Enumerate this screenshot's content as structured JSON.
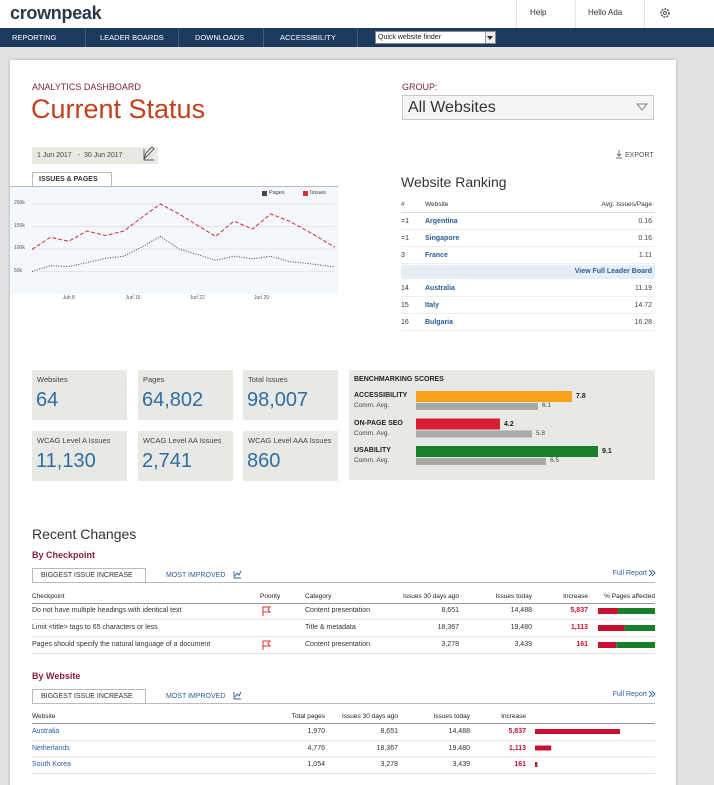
{
  "header": {
    "logo": "crownpeak",
    "links": [
      "Help",
      "Hello Ada"
    ]
  },
  "nav": {
    "items": [
      "REPORTING",
      "LEADER BOARDS",
      "DOWNLOADS",
      "ACCESSIBILITY"
    ],
    "finder": "Quick website finder"
  },
  "dashboard": {
    "eyebrow": "ANALYTICS DASHBOARD",
    "title": "Current Status",
    "group_label": "GROUP:",
    "group": "All Websites",
    "date_from": "1 Jun 2017",
    "date_sep": "-",
    "date_to": "30 Jun 2017",
    "export": "EXPORT"
  },
  "chart_data": [
    {
      "type": "line",
      "title": "ISSUES & PAGES",
      "x": [
        4,
        6,
        8,
        10,
        12,
        14,
        16,
        18,
        20,
        22,
        24,
        26,
        28,
        30,
        32,
        34,
        37
      ],
      "xlim": [
        4,
        37
      ],
      "xticks": [
        {
          "value": 8,
          "label": "Jun 8"
        },
        {
          "value": 15,
          "label": "Jun 15"
        },
        {
          "value": 22,
          "label": "Jun 22"
        },
        {
          "value": 29,
          "label": "Jun 29"
        }
      ],
      "ylim": [
        0,
        240000
      ],
      "yticks": [
        {
          "value": 50000,
          "label": "50k"
        },
        {
          "value": 100000,
          "label": "100k"
        },
        {
          "value": 150000,
          "label": "150k"
        },
        {
          "value": 200000,
          "label": "200k"
        }
      ],
      "grid": true,
      "series": [
        {
          "name": "Pages",
          "color": "#444444",
          "line_style": "dotted",
          "values": [
            50000,
            63000,
            61000,
            70000,
            79000,
            84000,
            105000,
            128000,
            100000,
            88000,
            75000,
            84000,
            78000,
            84000,
            72000,
            68000,
            60000
          ]
        },
        {
          "name": "Issues",
          "color": "#d9302c",
          "line_style": "dashed",
          "values": [
            99000,
            126000,
            117000,
            140000,
            130000,
            140000,
            171000,
            200000,
            178000,
            153000,
            128000,
            162000,
            144000,
            178000,
            162000,
            140000,
            104000
          ]
        }
      ]
    },
    {
      "type": "bar",
      "orientation": "horizontal",
      "title": "BENCHMARKING SCORES",
      "categories": [
        "ACCESSIBILITY",
        "ON-PAGE SEO",
        "USABILITY"
      ],
      "xlim": [
        0,
        10
      ],
      "series": [
        {
          "colors": [
            "#f7a21b",
            "#d71f30",
            "#16802b"
          ],
          "values": [
            7.8,
            4.2,
            9.1
          ]
        },
        {
          "name": "Comm. Avg.",
          "color": "#a9a9a9",
          "values": [
            6.1,
            5.8,
            6.5
          ]
        }
      ]
    }
  ],
  "ranking": {
    "title": "Website Ranking",
    "columns": [
      "#",
      "Website",
      "Avg. Issues/Page"
    ],
    "top": [
      [
        "=1",
        "Argentina",
        "0.16"
      ],
      [
        "=1",
        "Singapore",
        "0.16"
      ],
      [
        "3",
        "France",
        "1.11"
      ]
    ],
    "link": "View Full Leader Board",
    "bottom": [
      [
        "14",
        "Australia",
        "11.19"
      ],
      [
        "15",
        "Italy",
        "14.72"
      ],
      [
        "16",
        "Bulgaria",
        "16.28"
      ]
    ]
  },
  "stats": [
    {
      "label": "Websites",
      "value": "64"
    },
    {
      "label": "Pages",
      "value": "64,802"
    },
    {
      "label": "Total Issues",
      "value": "98,007"
    },
    {
      "label": "WCAG Level A Issues",
      "value": "11,130"
    },
    {
      "label": "WCAG Level AA Issues",
      "value": "2,741"
    },
    {
      "label": "WCAG Level AAA Issues",
      "value": "860"
    }
  ],
  "recent": {
    "title": "Recent Changes",
    "by_checkpoint": {
      "heading": "By Checkpoint",
      "tabs": [
        "BIGGEST ISSUE INCREASE",
        "MOST IMPROVED"
      ],
      "full_report": "Full Report",
      "columns": [
        "Checkpoint",
        "Priority",
        "Category",
        "Issues 30 days ago",
        "Issues today",
        "Increase",
        "% Pages affected"
      ],
      "rows": [
        {
          "checkpoint": "Do not have multiple headings with identical text",
          "priority_flag": true,
          "category": "Content presentation",
          "ago": "8,651",
          "today": "14,488",
          "increase": "5,837",
          "pages_affected": 35
        },
        {
          "checkpoint": "Limit <title> tags to 65 characters or less",
          "priority_flag": false,
          "category": "Title & metadata",
          "ago": "18,367",
          "today": "19,480",
          "increase": "1,113",
          "pages_affected": 47
        },
        {
          "checkpoint": "Pages should specify the natural language of a document",
          "priority_flag": true,
          "category": "Content presentation",
          "ago": "3,278",
          "today": "3,439",
          "increase": "161",
          "pages_affected": 32
        }
      ]
    },
    "by_website": {
      "heading": "By Website",
      "tabs": [
        "BIGGEST ISSUE INCREASE",
        "MOST IMPROVED"
      ],
      "full_report": "Full Report",
      "columns": [
        "Website",
        "Total pages",
        "Issues 30 days ago",
        "Issues today",
        "Increase"
      ],
      "rows": [
        {
          "website": "Australia",
          "total": "1,970",
          "ago": "8,651",
          "today": "14,488",
          "increase": {
            "value": 5837,
            "label": "5,837"
          }
        },
        {
          "website": "Netherlands",
          "total": "4,776",
          "ago": "18,367",
          "today": "19,480",
          "increase": {
            "value": 1113,
            "label": "1,113"
          }
        },
        {
          "website": "South Korea",
          "total": "1,054",
          "ago": "3,278",
          "today": "3,439",
          "increase": {
            "value": 161,
            "label": "161"
          }
        }
      ]
    }
  }
}
